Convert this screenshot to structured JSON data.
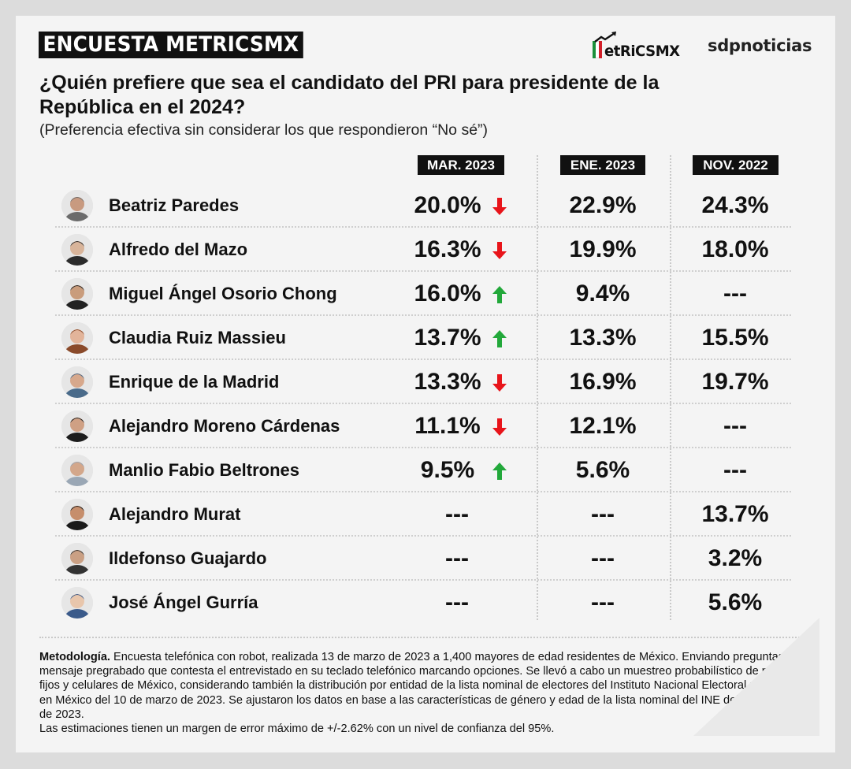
{
  "header": {
    "badge": "ENCUESTA METRICSMX",
    "logo_metrics": "etRiCSMX",
    "logo_sdp": "sdpnoticias",
    "title": "¿Quién prefiere que sea el candidato del PRI para presidente de la República en el 2024?",
    "subtitle": "(Preferencia efectiva sin considerar los que respondieron “No sé”)"
  },
  "colors": {
    "down_arrow": "#e8141a",
    "up_arrow": "#22a83a",
    "flag_green": "#1a8f3a",
    "flag_white": "#ffffff",
    "flag_red": "#d2202a",
    "header_bg": "#111111"
  },
  "chart_data": {
    "type": "table",
    "title": "¿Quién prefiere que sea el candidato del PRI para presidente de la República en el 2024?",
    "columns": [
      "MAR. 2023",
      "ENE. 2023",
      "NOV. 2022"
    ],
    "rows": [
      {
        "name": "Beatriz Paredes",
        "values": [
          "20.0%",
          "22.9%",
          "24.3%"
        ],
        "trend": "down",
        "avatar": "avatar-woman-gray-hair"
      },
      {
        "name": "Alfredo del Mazo",
        "values": [
          "16.3%",
          "19.9%",
          "18.0%"
        ],
        "trend": "down",
        "avatar": "avatar-man-suit"
      },
      {
        "name": "Miguel Ángel Osorio Chong",
        "values": [
          "16.0%",
          "9.4%",
          "---"
        ],
        "trend": "up",
        "avatar": "avatar-man-suit"
      },
      {
        "name": "Claudia Ruiz Massieu",
        "values": [
          "13.7%",
          "13.3%",
          "15.5%"
        ],
        "trend": "up",
        "avatar": "avatar-woman-brown-hair"
      },
      {
        "name": "Enrique de la Madrid",
        "values": [
          "13.3%",
          "16.9%",
          "19.7%"
        ],
        "trend": "down",
        "avatar": "avatar-man-outdoor"
      },
      {
        "name": "Alejandro Moreno Cárdenas",
        "values": [
          "11.1%",
          "12.1%",
          "---"
        ],
        "trend": "down",
        "avatar": "avatar-man-suit"
      },
      {
        "name": "Manlio Fabio Beltrones",
        "values": [
          "9.5%",
          "5.6%",
          "---"
        ],
        "trend": "up",
        "avatar": "avatar-man-suit"
      },
      {
        "name": "Alejandro Murat",
        "values": [
          "---",
          "---",
          "13.7%"
        ],
        "trend": "",
        "avatar": "avatar-man-suit"
      },
      {
        "name": "Ildefonso Guajardo",
        "values": [
          "---",
          "---",
          "3.2%"
        ],
        "trend": "",
        "avatar": "avatar-man-glasses"
      },
      {
        "name": "José Ángel Gurría",
        "values": [
          "---",
          "---",
          "5.6%"
        ],
        "trend": "",
        "avatar": "avatar-man-glasses"
      }
    ]
  },
  "methodology": {
    "label": "Metodología.",
    "text": " Encuesta telefónica con robot, realizada 13 de marzo de 2023 a 1,400 mayores de edad residentes de México. Enviando preguntas con mensaje pregrabado que contesta el entrevistado en su teclado telefónico marcando opciones. Se llevó a cabo un muestreo probabilístico de números fijos y celulares de México, considerando también la distribución por entidad de la lista nominal de electores del Instituto Nacional Electoral residentes en México del 10 de marzo de 2023. Se ajustaron los datos en base a las características de género y edad de la lista nominal del INE del 10 de marzo de 2023.",
    "margin": "Las estimaciones tienen un margen de error máximo de +/-2.62% con un nivel de confianza del 95%."
  }
}
